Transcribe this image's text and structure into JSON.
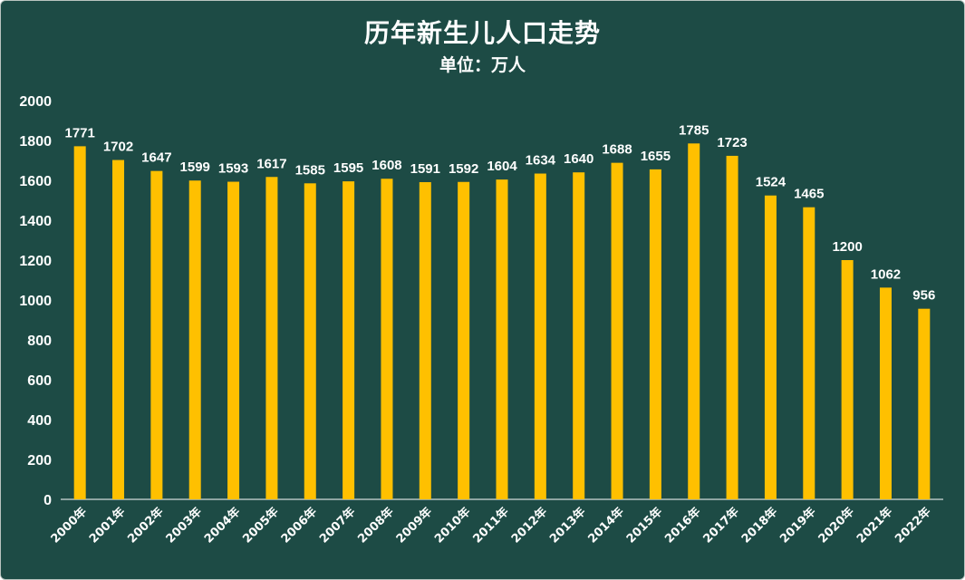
{
  "chart_data": {
    "type": "bar",
    "title": "历年新生儿人口走势",
    "subtitle": "单位：万人",
    "categories": [
      "2000年",
      "2001年",
      "2002年",
      "2003年",
      "2004年",
      "2005年",
      "2006年",
      "2007年",
      "2008年",
      "2009年",
      "2010年",
      "2011年",
      "2012年",
      "2013年",
      "2014年",
      "2015年",
      "2016年",
      "2017年",
      "2018年",
      "2019年",
      "2020年",
      "2021年",
      "2022年"
    ],
    "values": [
      1771,
      1702,
      1647,
      1599,
      1593,
      1617,
      1585,
      1595,
      1608,
      1591,
      1592,
      1604,
      1634,
      1640,
      1688,
      1655,
      1785,
      1723,
      1524,
      1465,
      1200,
      1062,
      956
    ],
    "ylim": [
      0,
      2000
    ],
    "yticks": [
      0,
      200,
      400,
      600,
      800,
      1000,
      1200,
      1400,
      1600,
      1800,
      2000
    ],
    "grid": false,
    "data_labels": true,
    "legend": "none",
    "colors": {
      "background": "#1d4b45",
      "bar": "#ffc000",
      "text": "#ffffff",
      "axis": "#ffffff"
    }
  }
}
